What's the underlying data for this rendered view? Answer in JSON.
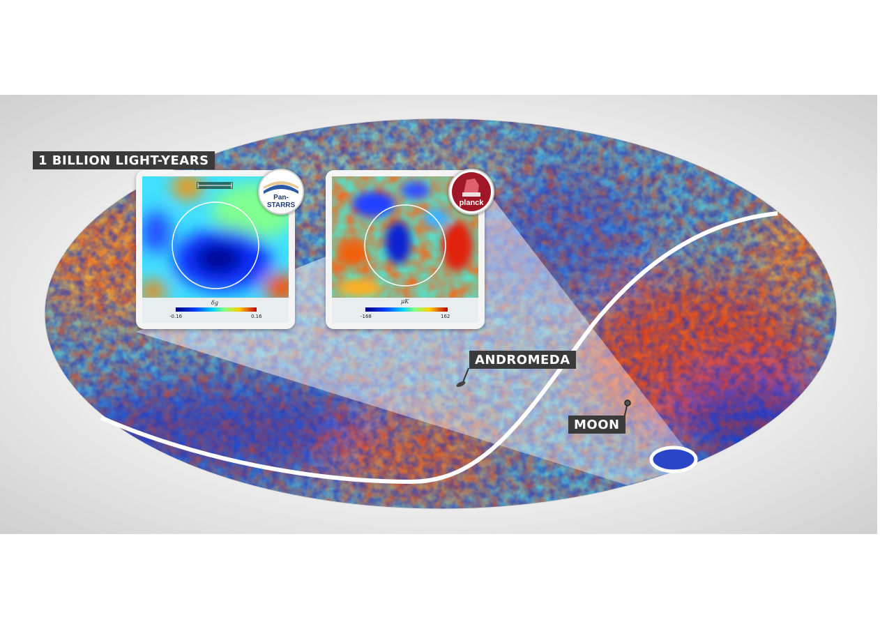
{
  "labels": {
    "scale": "1 BILLION LIGHT-YEARS",
    "andromeda": "ANDROMEDA",
    "moon": "MOON"
  },
  "panels": {
    "panstarrs": {
      "logo_text": "Pan-STARRS",
      "colorbar_name": "δg",
      "colorbar_min": "-0.16",
      "colorbar_max": "0.16"
    },
    "planck": {
      "logo_text": "planck",
      "colorbar_name": "μK",
      "colorbar_min": "-168",
      "colorbar_max": "162"
    }
  },
  "colors": {
    "cold": "#1030c0",
    "cool": "#40a8e0",
    "neutral": "#8fd0b0",
    "warm": "#f0b040",
    "hot": "#d03018",
    "label_bg": "#3a3a3a"
  }
}
